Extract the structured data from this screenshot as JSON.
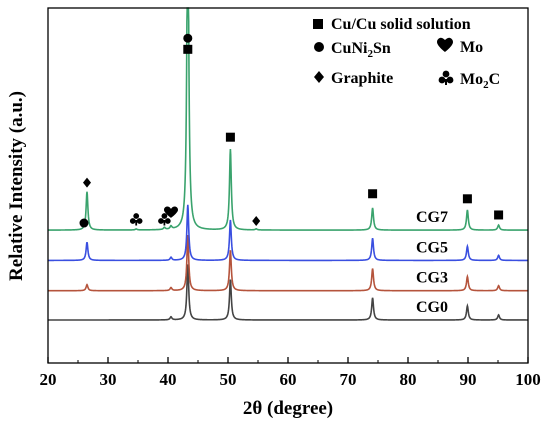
{
  "chart_data": {
    "type": "line",
    "xlabel": "2θ (degree)",
    "ylabel": "Relative Intensity (a.u.)",
    "xlim": [
      20,
      100
    ],
    "xticks": [
      20,
      30,
      40,
      50,
      60,
      70,
      80,
      90,
      100
    ],
    "yticks_shown": false,
    "legend": {
      "placement": "top-right",
      "entries": [
        {
          "symbol": "square",
          "text": "Cu/Cu solid solution"
        },
        {
          "symbol": "circle",
          "text_main": "CuNi",
          "text_sub": "2",
          "text_tail": "Sn"
        },
        {
          "symbol": "heart",
          "text": "Mo"
        },
        {
          "symbol": "diamond",
          "text": "Graphite"
        },
        {
          "symbol": "club",
          "text_main": "Mo",
          "text_sub": "2",
          "text_tail": "C"
        }
      ]
    },
    "series": [
      {
        "name": "CG0",
        "color": "#444444",
        "baseline": 0.0,
        "peaks": [
          [
            40.5,
            0.03
          ],
          [
            43.3,
            0.55
          ],
          [
            50.4,
            0.4
          ],
          [
            74.1,
            0.22
          ],
          [
            89.9,
            0.14
          ],
          [
            95.1,
            0.05
          ]
        ]
      },
      {
        "name": "CG3",
        "color": "#b5543c",
        "baseline": 0.29,
        "peaks": [
          [
            26.5,
            0.06
          ],
          [
            40.5,
            0.03
          ],
          [
            43.3,
            0.55
          ],
          [
            50.4,
            0.4
          ],
          [
            74.1,
            0.22
          ],
          [
            89.9,
            0.14
          ],
          [
            95.1,
            0.05
          ]
        ]
      },
      {
        "name": "CG5",
        "color": "#3a4fe0",
        "baseline": 0.59,
        "peaks": [
          [
            26.5,
            0.18
          ],
          [
            40.5,
            0.03
          ],
          [
            43.3,
            0.55
          ],
          [
            50.4,
            0.4
          ],
          [
            74.1,
            0.22
          ],
          [
            89.9,
            0.14
          ],
          [
            95.1,
            0.05
          ]
        ]
      },
      {
        "name": "CG7",
        "color": "#3aa36d",
        "baseline": 0.89,
        "peaks": [
          [
            26.5,
            0.38
          ],
          [
            34.7,
            0.01
          ],
          [
            39.4,
            0.02
          ],
          [
            40.5,
            0.03
          ],
          [
            43.3,
            3.5
          ],
          [
            50.4,
            0.8
          ],
          [
            54.7,
            0.01
          ],
          [
            74.1,
            0.22
          ],
          [
            89.9,
            0.2
          ],
          [
            95.1,
            0.05
          ]
        ]
      }
    ],
    "markers": [
      {
        "symbol": "circle",
        "x": 26.0,
        "y": 0.96
      },
      {
        "symbol": "diamond",
        "x": 26.5,
        "y": 1.36
      },
      {
        "symbol": "club",
        "x": 34.7,
        "y": 0.99
      },
      {
        "symbol": "club",
        "x": 39.4,
        "y": 0.99
      },
      {
        "symbol": "heart",
        "x": 40.5,
        "y": 1.07
      },
      {
        "symbol": "circle",
        "x": 43.3,
        "y": 2.79
      },
      {
        "symbol": "square",
        "x": 43.3,
        "y": 2.68
      },
      {
        "symbol": "square",
        "x": 50.4,
        "y": 1.81
      },
      {
        "symbol": "diamond",
        "x": 54.7,
        "y": 0.98
      },
      {
        "symbol": "square",
        "x": 74.1,
        "y": 1.25
      },
      {
        "symbol": "square",
        "x": 89.9,
        "y": 1.2
      },
      {
        "symbol": "square",
        "x": 95.1,
        "y": 1.04
      }
    ]
  }
}
